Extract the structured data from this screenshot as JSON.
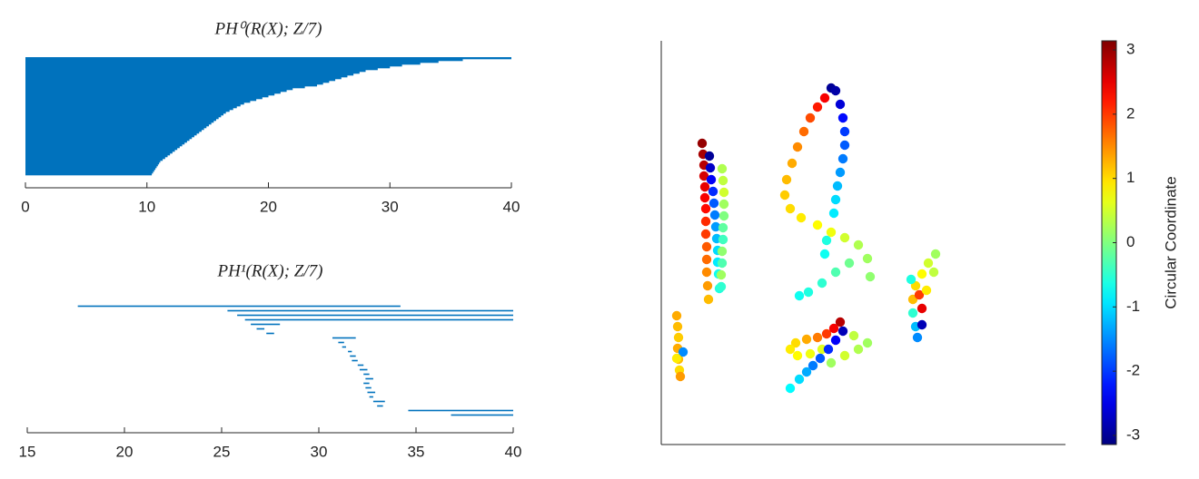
{
  "chart_data": [
    {
      "type": "barcode",
      "title": "PH⁰(R(X); Z/7)",
      "color": "#0072bd",
      "solid": true,
      "xlim": [
        0,
        40
      ],
      "xticks": [
        0,
        10,
        20,
        30,
        40
      ],
      "bars": [
        [
          0,
          40
        ],
        [
          0,
          36
        ],
        [
          0,
          34
        ],
        [
          0,
          32.5
        ],
        [
          0,
          31
        ],
        [
          0,
          30
        ],
        [
          0,
          29
        ],
        [
          0,
          28
        ],
        [
          0,
          27.5
        ],
        [
          0,
          27
        ],
        [
          0,
          26.5
        ],
        [
          0,
          26
        ],
        [
          0,
          25.5
        ],
        [
          0,
          25
        ],
        [
          0,
          24.5
        ],
        [
          0,
          24
        ],
        [
          0,
          23
        ],
        [
          0,
          22
        ],
        [
          0,
          21.5
        ],
        [
          0,
          21
        ],
        [
          0,
          20.5
        ],
        [
          0,
          20
        ],
        [
          0,
          19.5
        ],
        [
          0,
          19
        ],
        [
          0,
          18.5
        ],
        [
          0,
          18
        ],
        [
          0,
          17.7
        ],
        [
          0,
          17.4
        ],
        [
          0,
          17.1
        ],
        [
          0,
          16.8
        ],
        [
          0,
          16.5
        ],
        [
          0,
          16.3
        ],
        [
          0,
          16.1
        ],
        [
          0,
          15.9
        ],
        [
          0,
          15.7
        ],
        [
          0,
          15.5
        ],
        [
          0,
          15.3
        ],
        [
          0,
          15.1
        ],
        [
          0,
          14.9
        ],
        [
          0,
          14.7
        ],
        [
          0,
          14.5
        ],
        [
          0,
          14.3
        ],
        [
          0,
          14.1
        ],
        [
          0,
          13.9
        ],
        [
          0,
          13.7
        ],
        [
          0,
          13.5
        ],
        [
          0,
          13.3
        ],
        [
          0,
          13.1
        ],
        [
          0,
          12.9
        ],
        [
          0,
          12.7
        ],
        [
          0,
          12.5
        ],
        [
          0,
          12.3
        ],
        [
          0,
          12.1
        ],
        [
          0,
          11.9
        ],
        [
          0,
          11.7
        ],
        [
          0,
          11.5
        ],
        [
          0,
          11.3
        ],
        [
          0,
          11.1
        ],
        [
          0,
          11
        ],
        [
          0,
          10.9
        ],
        [
          0,
          10.8
        ],
        [
          0,
          10.7
        ],
        [
          0,
          10.6
        ],
        [
          0,
          10.5
        ],
        [
          0,
          10.4
        ]
      ]
    },
    {
      "type": "barcode",
      "title": "PH¹(R(X); Z/7)",
      "color": "#0072bd",
      "solid": false,
      "xlim": [
        15,
        40
      ],
      "xticks": [
        15,
        20,
        25,
        30,
        35,
        40
      ],
      "bars": [
        [
          17.6,
          34.2
        ],
        [
          25.3,
          40
        ],
        [
          25.8,
          40
        ],
        [
          26.2,
          40
        ],
        [
          26.5,
          28
        ],
        [
          26.8,
          27.2
        ],
        [
          27.3,
          27.7
        ],
        [
          30.7,
          31.9
        ],
        [
          31,
          31.3
        ],
        [
          31.2,
          31.4
        ],
        [
          31.5,
          31.7
        ],
        [
          31.6,
          31.9
        ],
        [
          31.7,
          32
        ],
        [
          32,
          32.3
        ],
        [
          32.1,
          32.5
        ],
        [
          32.3,
          32.6
        ],
        [
          32.4,
          32.8
        ],
        [
          32.3,
          32.6
        ],
        [
          32.4,
          32.7
        ],
        [
          32.5,
          32.9
        ],
        [
          32.6,
          32.8
        ],
        [
          32.8,
          33.4
        ],
        [
          33,
          33.3
        ],
        [
          34.6,
          40
        ],
        [
          36.8,
          40
        ]
      ]
    },
    {
      "type": "scatter",
      "colormap": "jet",
      "xlim": [
        0,
        445
      ],
      "ylim": [
        0,
        445
      ],
      "clim": [
        -3.1416,
        3.1416
      ],
      "cticks": [
        -3,
        -2,
        -1,
        0,
        1,
        2,
        3
      ],
      "colorbar_label": "Circular Coordinate",
      "x": [
        45,
        46,
        47,
        47,
        48,
        48,
        49,
        49,
        49,
        50,
        50,
        50,
        51,
        52,
        53,
        54,
        55,
        57,
        58,
        59,
        60,
        61,
        62,
        62,
        63,
        64,
        67,
        68,
        69,
        69,
        69,
        68,
        68,
        67,
        67,
        66,
        66,
        187,
        192,
        197,
        200,
        202,
        202,
        200,
        197,
        194,
        192,
        190,
        180,
        172,
        164,
        157,
        150,
        144,
        138,
        136,
        142,
        154,
        172,
        187,
        202,
        217,
        227,
        230,
        207,
        192,
        177,
        162,
        152,
        182,
        180,
        197,
        190,
        182,
        172,
        160,
        148,
        142,
        150,
        164,
        177,
        200,
        192,
        184,
        175,
        167,
        160,
        152,
        142,
        212,
        227,
        217,
        202,
        187,
        17,
        18,
        19,
        18,
        19,
        20,
        21,
        24,
        17,
        302,
        294,
        287,
        280,
        277,
        277,
        280,
        282,
        287,
        287,
        284,
        300,
        292,
        275
      ],
      "y": [
        332,
        320,
        308,
        296,
        284,
        272,
        260,
        246,
        232,
        218,
        204,
        190,
        175,
        160,
        318,
        305,
        292,
        279,
        266,
        253,
        240,
        227,
        214,
        201,
        188,
        172,
        304,
        291,
        278,
        265,
        252,
        239,
        226,
        213,
        200,
        187,
        174,
        393,
        390,
        375,
        360,
        345,
        330,
        315,
        300,
        285,
        270,
        255,
        382,
        372,
        360,
        345,
        328,
        310,
        292,
        275,
        260,
        250,
        242,
        234,
        228,
        220,
        205,
        185,
        200,
        190,
        178,
        168,
        164,
        225,
        210,
        135,
        128,
        122,
        118,
        116,
        112,
        105,
        98,
        100,
        105,
        125,
        115,
        105,
        95,
        87,
        80,
        72,
        62,
        120,
        112,
        105,
        98,
        90,
        142,
        130,
        118,
        106,
        94,
        82,
        75,
        102,
        95,
        210,
        200,
        188,
        175,
        160,
        145,
        130,
        118,
        132,
        150,
        165,
        190,
        170,
        182
      ],
      "c": [
        3.0,
        2.9,
        2.8,
        2.6,
        2.5,
        2.4,
        2.3,
        2.1,
        2.0,
        1.8,
        1.7,
        1.5,
        1.4,
        1.2,
        -3.0,
        -2.7,
        -2.4,
        -2.1,
        -1.8,
        -1.6,
        -1.4,
        -1.2,
        -1.0,
        -0.9,
        -0.7,
        -0.6,
        0.3,
        0.4,
        0.5,
        0.2,
        0.0,
        -0.2,
        -0.4,
        0.1,
        -0.3,
        0.2,
        -0.5,
        -3.0,
        -2.9,
        -2.6,
        -2.3,
        -2.0,
        -1.8,
        -1.6,
        -1.4,
        -1.2,
        -1.0,
        -0.9,
        2.4,
        2.2,
        1.9,
        1.7,
        1.5,
        1.3,
        1.2,
        1.1,
        1.0,
        0.9,
        0.8,
        0.7,
        0.5,
        0.3,
        0.2,
        0.1,
        -0.1,
        -0.3,
        -0.5,
        -0.6,
        -0.7,
        -0.6,
        -0.7,
        2.8,
        2.4,
        2.0,
        1.6,
        1.3,
        1.0,
        0.9,
        0.8,
        0.7,
        0.6,
        -2.8,
        -2.4,
        -2.1,
        -1.8,
        -1.6,
        -1.3,
        -1.0,
        -0.8,
        0.4,
        0.2,
        0.3,
        0.5,
        0.2,
        1.3,
        1.2,
        1.1,
        1.3,
        1.2,
        1.0,
        1.4,
        -1.5,
        0.9,
        0.2,
        0.5,
        0.8,
        1.0,
        1.2,
        -0.5,
        -1.2,
        -1.5,
        -2.8,
        2.5,
        2.0,
        0.4,
        0.9,
        -0.6
      ]
    }
  ]
}
